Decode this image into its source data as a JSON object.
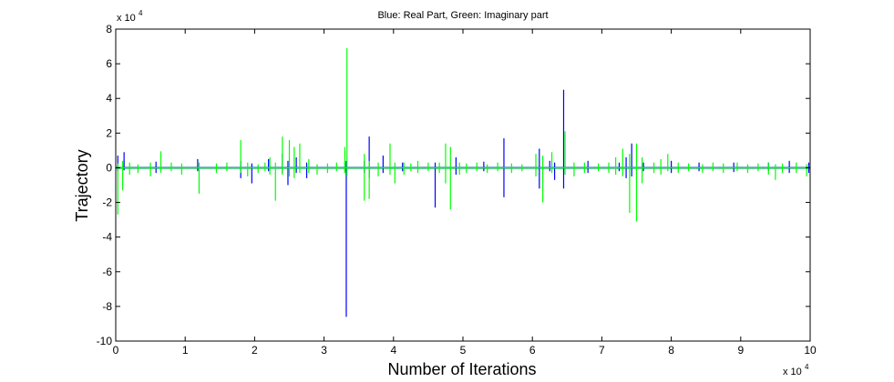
{
  "chart_data": {
    "type": "line",
    "title": "Blue: Real Part, Green: Imaginary part",
    "xlabel": "Number of Iterations",
    "ylabel": "Trajectory",
    "x_exponent_label": "x 10",
    "x_exponent_power": "4",
    "y_exponent_label": "x 10",
    "y_exponent_power": "4",
    "xlim": [
      0,
      100000
    ],
    "ylim": [
      -100000,
      80000
    ],
    "x_ticks": [
      0,
      10000,
      20000,
      30000,
      40000,
      50000,
      60000,
      70000,
      80000,
      90000,
      100000
    ],
    "x_tick_labels": [
      "0",
      "1",
      "2",
      "3",
      "4",
      "5",
      "6",
      "7",
      "8",
      "9",
      "10"
    ],
    "y_ticks": [
      -100000,
      -80000,
      -60000,
      -40000,
      -20000,
      0,
      20000,
      40000,
      60000,
      80000
    ],
    "y_tick_labels": [
      "-10",
      "-8",
      "-6",
      "-4",
      "-2",
      "0",
      "2",
      "4",
      "6",
      "8"
    ],
    "grid": false,
    "legend": "none",
    "series": [
      {
        "name": "Real Part",
        "color": "#0000ff",
        "spikes": [
          [
            300,
            7000,
            -2000
          ],
          [
            1200,
            9000,
            -1500
          ],
          [
            5800,
            3500,
            -3000
          ],
          [
            11800,
            5000,
            -2000
          ],
          [
            18000,
            4000,
            -6000
          ],
          [
            19600,
            2500,
            -9000
          ],
          [
            22000,
            5000,
            -2000
          ],
          [
            24000,
            8000,
            -3000
          ],
          [
            24800,
            4000,
            -10000
          ],
          [
            26000,
            6000,
            -3000
          ],
          [
            27500,
            3000,
            -6000
          ],
          [
            33000,
            3000,
            -2500
          ],
          [
            33200,
            4000,
            -86000
          ],
          [
            35800,
            4000,
            -3000
          ],
          [
            36500,
            18000,
            -6000
          ],
          [
            38500,
            7000,
            -3000
          ],
          [
            41300,
            3000,
            -2000
          ],
          [
            46000,
            3000,
            -23000
          ],
          [
            49000,
            6000,
            -4000
          ],
          [
            53000,
            3500,
            -2000
          ],
          [
            55900,
            17000,
            -17000
          ],
          [
            61000,
            11000,
            -12000
          ],
          [
            62500,
            4000,
            -2000
          ],
          [
            63200,
            3000,
            -7000
          ],
          [
            64500,
            45000,
            -12000
          ],
          [
            68000,
            4000,
            -3000
          ],
          [
            72500,
            3000,
            -2000
          ],
          [
            73500,
            6000,
            -6000
          ],
          [
            74300,
            14000,
            -5000
          ],
          [
            76000,
            3000,
            -2000
          ],
          [
            80000,
            4000,
            -3000
          ],
          [
            84000,
            3000,
            -2000
          ],
          [
            89000,
            3000,
            -2500
          ],
          [
            94000,
            3000,
            -2000
          ],
          [
            97000,
            4000,
            -3000
          ],
          [
            99800,
            3000,
            -3000
          ]
        ]
      },
      {
        "name": "Imaginary part",
        "color": "#00ff00",
        "spikes": [
          [
            300,
            2500,
            -27000
          ],
          [
            1000,
            4000,
            -13000
          ],
          [
            2000,
            3000,
            -4000
          ],
          [
            3200,
            2000,
            -3000
          ],
          [
            5000,
            3000,
            -5000
          ],
          [
            6500,
            9500,
            -3000
          ],
          [
            8000,
            3000,
            -2000
          ],
          [
            9500,
            2500,
            -4000
          ],
          [
            12000,
            3000,
            -15000
          ],
          [
            14500,
            2500,
            -3000
          ],
          [
            16000,
            3000,
            -2000
          ],
          [
            18000,
            16000,
            -3000
          ],
          [
            19000,
            3000,
            -5000
          ],
          [
            20500,
            2000,
            -3000
          ],
          [
            21500,
            3000,
            -2000
          ],
          [
            22200,
            6000,
            -4000
          ],
          [
            23000,
            3000,
            -19000
          ],
          [
            24000,
            18000,
            -4000
          ],
          [
            25000,
            16000,
            -5000
          ],
          [
            25700,
            12000,
            -6000
          ],
          [
            26500,
            14000,
            -3000
          ],
          [
            27800,
            5000,
            -3000
          ],
          [
            29000,
            2000,
            -4000
          ],
          [
            30500,
            2500,
            -3000
          ],
          [
            31800,
            3000,
            -2000
          ],
          [
            33000,
            12000,
            -3000
          ],
          [
            33300,
            69000,
            -5000
          ],
          [
            35800,
            8000,
            -19000
          ],
          [
            36500,
            4000,
            -18000
          ],
          [
            37800,
            3000,
            -5000
          ],
          [
            39500,
            14000,
            -4000
          ],
          [
            40200,
            3000,
            -9000
          ],
          [
            41500,
            3000,
            -4000
          ],
          [
            42500,
            2500,
            -2000
          ],
          [
            43500,
            4000,
            -3000
          ],
          [
            45000,
            3000,
            -2000
          ],
          [
            46600,
            3000,
            -3000
          ],
          [
            47500,
            14000,
            -9000
          ],
          [
            48200,
            12000,
            -24000
          ],
          [
            49500,
            3000,
            -4000
          ],
          [
            50500,
            2500,
            -3000
          ],
          [
            52000,
            3000,
            -2000
          ],
          [
            53500,
            2000,
            -3000
          ],
          [
            55000,
            3000,
            -2000
          ],
          [
            57000,
            2500,
            -3000
          ],
          [
            58500,
            2000,
            -2000
          ],
          [
            60500,
            8000,
            -5000
          ],
          [
            61500,
            7000,
            -20000
          ],
          [
            62800,
            9000,
            -3000
          ],
          [
            64700,
            21000,
            -4000
          ],
          [
            66000,
            3000,
            -5000
          ],
          [
            67500,
            3000,
            -3000
          ],
          [
            69500,
            2500,
            -2000
          ],
          [
            71000,
            3000,
            -3000
          ],
          [
            72000,
            6000,
            -4000
          ],
          [
            73000,
            11000,
            -5000
          ],
          [
            74000,
            8000,
            -26000
          ],
          [
            75000,
            14000,
            -31000
          ],
          [
            75800,
            6000,
            -9000
          ],
          [
            77500,
            3000,
            -3000
          ],
          [
            78500,
            5000,
            -4000
          ],
          [
            79500,
            8000,
            -2000
          ],
          [
            81000,
            3000,
            -3000
          ],
          [
            82500,
            2500,
            -2000
          ],
          [
            84500,
            2000,
            -3000
          ],
          [
            86000,
            3000,
            -2000
          ],
          [
            87500,
            2500,
            -3000
          ],
          [
            89500,
            3000,
            -2000
          ],
          [
            91000,
            2000,
            -3000
          ],
          [
            92500,
            2500,
            -2000
          ],
          [
            94000,
            3000,
            -4000
          ],
          [
            95000,
            2000,
            -7000
          ],
          [
            96000,
            2500,
            -3000
          ],
          [
            98000,
            3000,
            -3000
          ],
          [
            99500,
            2000,
            -5000
          ]
        ]
      }
    ]
  }
}
